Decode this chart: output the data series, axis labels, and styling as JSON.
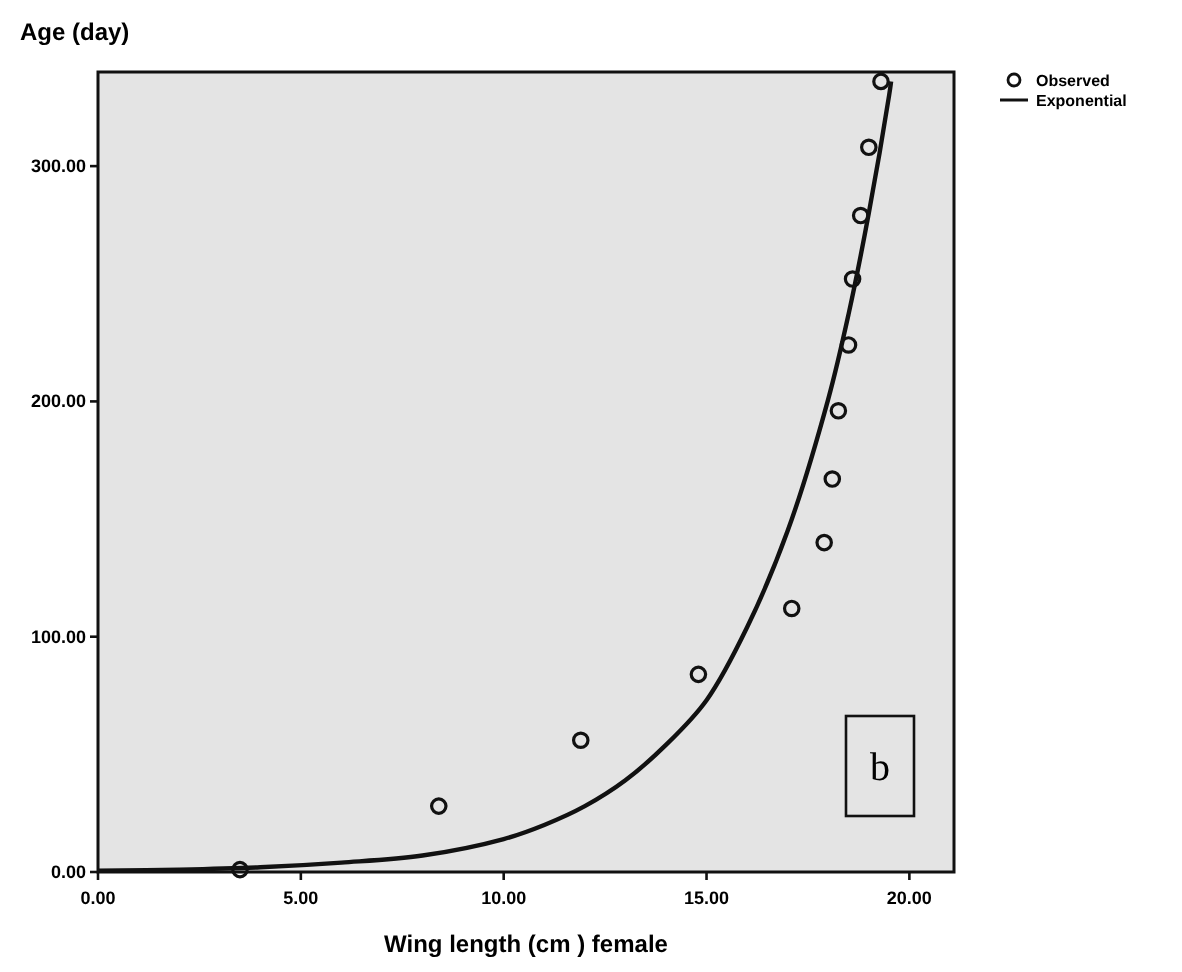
{
  "chart_data": {
    "type": "scatter",
    "xlabel": "Wing length (cm ) female",
    "ylabel": "Age (day)",
    "xlim": [
      0,
      21.1
    ],
    "ylim": [
      0,
      340
    ],
    "xticks": [
      {
        "value": 0,
        "label": "0.00"
      },
      {
        "value": 5,
        "label": "5.00"
      },
      {
        "value": 10,
        "label": "10.00"
      },
      {
        "value": 15,
        "label": "15.00"
      },
      {
        "value": 20,
        "label": "20.00"
      }
    ],
    "yticks": [
      {
        "value": 0,
        "label": "0.00"
      },
      {
        "value": 100,
        "label": "100.00"
      },
      {
        "value": 200,
        "label": "200.00"
      },
      {
        "value": 300,
        "label": "300.00"
      }
    ],
    "legend": "top right",
    "grid": false,
    "annotations": [
      "b"
    ],
    "series": [
      {
        "name": "Observed",
        "marker": "circle",
        "color": "#111111",
        "x": [
          3.5,
          8.4,
          11.9,
          14.8,
          17.1,
          17.9,
          18.1,
          18.25,
          18.5,
          18.6,
          18.8,
          19.0,
          19.3
        ],
        "values": [
          1,
          28,
          56,
          84,
          112,
          140,
          167,
          196,
          224,
          252,
          279,
          308,
          336
        ]
      },
      {
        "name": "Exponential",
        "type": "line",
        "line_style": "solid",
        "marker": "none",
        "color": "#111111",
        "x": [
          0,
          2,
          4,
          6,
          8,
          10,
          11,
          12,
          13,
          14,
          15,
          16,
          17,
          18,
          18.5,
          19,
          19.5,
          19.55
        ],
        "values": [
          0.5,
          1,
          2,
          4,
          7,
          14,
          20,
          28,
          39,
          54,
          73,
          104,
          145,
          201,
          237,
          280,
          330,
          336
        ]
      }
    ]
  }
}
